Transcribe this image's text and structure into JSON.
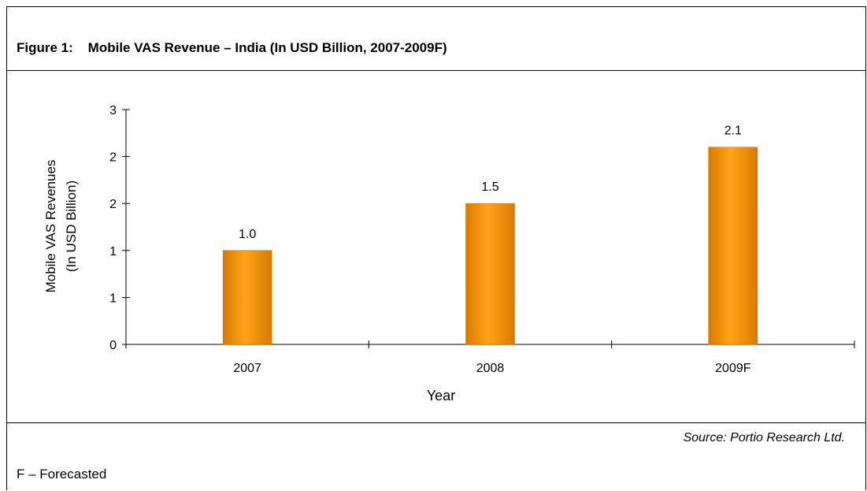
{
  "figure": {
    "title": "Figure 1:    Mobile VAS Revenue – India (In USD Billion, 2007-2009F)",
    "source": "Source: Portio Research Ltd.",
    "footnote": "F – Forecasted"
  },
  "colors": {
    "bar_fill": "#ff9900",
    "bar_edge": "#cc6600"
  },
  "chart_data": {
    "type": "bar",
    "categories": [
      "2007",
      "2008",
      "2009F"
    ],
    "values": [
      1.0,
      1.5,
      2.1
    ],
    "data_labels": [
      "1.0",
      "1.5",
      "2.1"
    ],
    "ytick_labels": [
      "0",
      "1",
      "1",
      "2",
      "2",
      "3"
    ],
    "ylim": [
      0,
      2.5
    ],
    "title": "Figure 1:    Mobile VAS Revenue – India (In USD Billion, 2007-2009F)",
    "xlabel": "Year",
    "ylabel": [
      "Mobile VAS Revenues",
      "(In USD Billion)"
    ],
    "grid": false,
    "legend": "none"
  }
}
